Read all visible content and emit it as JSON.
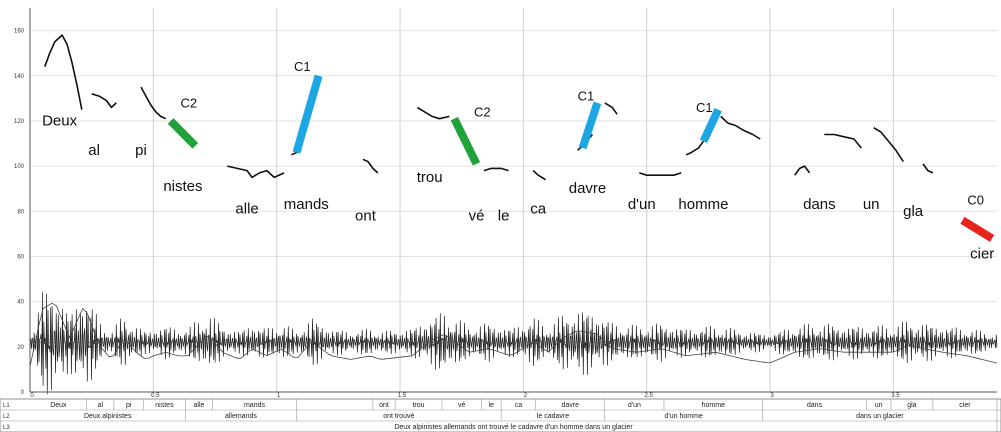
{
  "chart_data": {
    "type": "line",
    "ylim": [
      0,
      170
    ],
    "xlim": [
      0,
      3.92
    ],
    "y_ticks": [
      {
        "value": 0,
        "label": "0"
      },
      {
        "value": 20,
        "label": "20"
      },
      {
        "value": 40,
        "label": "40"
      },
      {
        "value": 60,
        "label": "60"
      },
      {
        "value": 80,
        "label": "80"
      },
      {
        "value": 100,
        "label": "100"
      },
      {
        "value": 120,
        "label": "120"
      },
      {
        "value": 140,
        "label": "140"
      },
      {
        "value": 160,
        "label": "160"
      }
    ],
    "x_ticks": [
      {
        "value": 0,
        "label": "0"
      },
      {
        "value": 0.5,
        "label": "0.5"
      },
      {
        "value": 1,
        "label": "1"
      },
      {
        "value": 1.5,
        "label": "1.5"
      },
      {
        "value": 2,
        "label": "2"
      },
      {
        "value": 2.5,
        "label": "2.5"
      },
      {
        "value": 3,
        "label": "3"
      },
      {
        "value": 3.5,
        "label": "3.5"
      }
    ],
    "pitch_series": [
      [
        [
          0.06,
          144
        ],
        [
          0.08,
          150
        ],
        [
          0.1,
          155
        ],
        [
          0.13,
          158
        ],
        [
          0.15,
          154
        ],
        [
          0.17,
          146
        ],
        [
          0.19,
          136
        ],
        [
          0.21,
          125
        ]
      ],
      [
        [
          0.25,
          132
        ],
        [
          0.28,
          131
        ],
        [
          0.31,
          129
        ],
        [
          0.33,
          126
        ],
        [
          0.35,
          128
        ]
      ],
      [
        [
          0.45,
          135
        ],
        [
          0.47,
          131
        ],
        [
          0.49,
          127
        ],
        [
          0.51,
          124
        ],
        [
          0.53,
          122
        ],
        [
          0.55,
          121
        ]
      ],
      [
        [
          0.8,
          100
        ],
        [
          0.84,
          99
        ],
        [
          0.88,
          98
        ],
        [
          0.9,
          95
        ],
        [
          0.93,
          97
        ],
        [
          0.96,
          98
        ],
        [
          0.99,
          95
        ],
        [
          1.03,
          97
        ]
      ],
      [
        [
          1.06,
          105
        ],
        [
          1.08,
          106
        ],
        [
          1.1,
          107
        ]
      ],
      [
        [
          1.35,
          103
        ],
        [
          1.37,
          102
        ],
        [
          1.39,
          99
        ],
        [
          1.41,
          97
        ]
      ],
      [
        [
          1.57,
          126
        ],
        [
          1.6,
          124
        ],
        [
          1.63,
          122
        ],
        [
          1.66,
          121
        ],
        [
          1.7,
          122
        ]
      ],
      [
        [
          1.84,
          98
        ],
        [
          1.87,
          99
        ],
        [
          1.91,
          99
        ],
        [
          1.94,
          98
        ]
      ],
      [
        [
          2.04,
          98
        ],
        [
          2.06,
          96
        ],
        [
          2.09,
          94
        ]
      ],
      [
        [
          2.22,
          107
        ],
        [
          2.25,
          110
        ],
        [
          2.28,
          114
        ]
      ],
      [
        [
          2.33,
          128
        ],
        [
          2.36,
          126
        ],
        [
          2.38,
          123
        ]
      ],
      [
        [
          2.47,
          97
        ],
        [
          2.5,
          96
        ],
        [
          2.55,
          96
        ],
        [
          2.61,
          96
        ],
        [
          2.64,
          97
        ]
      ],
      [
        [
          2.66,
          105
        ],
        [
          2.68,
          106
        ],
        [
          2.71,
          108
        ],
        [
          2.73,
          111
        ]
      ],
      [
        [
          2.8,
          122
        ],
        [
          2.83,
          119
        ],
        [
          2.86,
          118
        ],
        [
          2.89,
          116
        ],
        [
          2.93,
          114
        ],
        [
          2.96,
          112
        ]
      ],
      [
        [
          3.1,
          96
        ],
        [
          3.12,
          99
        ],
        [
          3.14,
          100
        ],
        [
          3.16,
          97
        ]
      ],
      [
        [
          3.22,
          114
        ],
        [
          3.26,
          114
        ],
        [
          3.3,
          113
        ],
        [
          3.34,
          112
        ],
        [
          3.37,
          108
        ]
      ],
      [
        [
          3.42,
          117
        ],
        [
          3.45,
          115
        ],
        [
          3.48,
          111
        ],
        [
          3.51,
          107
        ],
        [
          3.54,
          102
        ]
      ],
      [
        [
          3.62,
          101
        ],
        [
          3.64,
          98
        ],
        [
          3.66,
          97
        ]
      ]
    ],
    "syllables": [
      {
        "text": "Deux",
        "x": 0.12,
        "y": 118
      },
      {
        "text": "al",
        "x": 0.26,
        "y": 105
      },
      {
        "text": "pi",
        "x": 0.45,
        "y": 105
      },
      {
        "text": "nistes",
        "x": 0.62,
        "y": 89
      },
      {
        "text": "alle",
        "x": 0.88,
        "y": 79
      },
      {
        "text": "mands",
        "x": 1.12,
        "y": 81
      },
      {
        "text": "ont",
        "x": 1.36,
        "y": 76
      },
      {
        "text": "trou",
        "x": 1.62,
        "y": 93
      },
      {
        "text": "vé",
        "x": 1.81,
        "y": 76
      },
      {
        "text": "le",
        "x": 1.92,
        "y": 76
      },
      {
        "text": "ca",
        "x": 2.06,
        "y": 79
      },
      {
        "text": "davre",
        "x": 2.26,
        "y": 88
      },
      {
        "text": "d'un",
        "x": 2.48,
        "y": 81
      },
      {
        "text": "homme",
        "x": 2.73,
        "y": 81
      },
      {
        "text": "dans",
        "x": 3.2,
        "y": 81
      },
      {
        "text": "un",
        "x": 3.41,
        "y": 81
      },
      {
        "text": "gla",
        "x": 3.58,
        "y": 78
      },
      {
        "text": "cier",
        "x": 3.86,
        "y": 59
      }
    ],
    "contours": [
      {
        "label": "C2",
        "color": "#1fa23a",
        "x0": 0.57,
        "y0": 120,
        "x1": 0.67,
        "y1": 109,
        "lx": 0.61,
        "ly": 126
      },
      {
        "label": "C1",
        "color": "#1ca6e4",
        "x0": 1.08,
        "y0": 106,
        "x1": 1.17,
        "y1": 140,
        "lx": 1.07,
        "ly": 142
      },
      {
        "label": "C2",
        "color": "#1fa23a",
        "x0": 1.72,
        "y0": 121,
        "x1": 1.81,
        "y1": 101,
        "lx": 1.8,
        "ly": 122
      },
      {
        "label": "C1",
        "color": "#1ca6e4",
        "x0": 2.24,
        "y0": 108,
        "x1": 2.3,
        "y1": 128,
        "lx": 2.22,
        "ly": 129
      },
      {
        "label": "C1",
        "color": "#1ca6e4",
        "x0": 2.73,
        "y0": 111,
        "x1": 2.79,
        "y1": 125,
        "lx": 2.7,
        "ly": 124
      },
      {
        "label": "C0",
        "color": "#e8231e",
        "x0": 3.78,
        "y0": 76,
        "x1": 3.9,
        "y1": 68,
        "lx": 3.8,
        "ly": 83
      }
    ]
  },
  "tiers": [
    {
      "label": "L1",
      "cells": [
        {
          "text": "Deux",
          "t0": 0.0,
          "t1": 0.23
        },
        {
          "text": "al",
          "t0": 0.23,
          "t1": 0.34
        },
        {
          "text": "pi",
          "t0": 0.34,
          "t1": 0.46
        },
        {
          "text": "nistes",
          "t0": 0.46,
          "t1": 0.63
        },
        {
          "text": "alle",
          "t0": 0.63,
          "t1": 0.74
        },
        {
          "text": "mands",
          "t0": 0.74,
          "t1": 1.08
        },
        {
          "text": "",
          "t0": 1.08,
          "t1": 1.39
        },
        {
          "text": "ont",
          "t0": 1.39,
          "t1": 1.48
        },
        {
          "text": "trou",
          "t0": 1.48,
          "t1": 1.67
        },
        {
          "text": "vé",
          "t0": 1.67,
          "t1": 1.83
        },
        {
          "text": "le",
          "t0": 1.83,
          "t1": 1.91
        },
        {
          "text": "ca",
          "t0": 1.91,
          "t1": 2.05
        },
        {
          "text": "davre",
          "t0": 2.05,
          "t1": 2.33
        },
        {
          "text": "d'un",
          "t0": 2.33,
          "t1": 2.57
        },
        {
          "text": "homme",
          "t0": 2.57,
          "t1": 2.97
        },
        {
          "text": "dans",
          "t0": 2.97,
          "t1": 3.39
        },
        {
          "text": "un",
          "t0": 3.39,
          "t1": 3.49
        },
        {
          "text": "gla",
          "t0": 3.49,
          "t1": 3.66
        },
        {
          "text": "cier",
          "t0": 3.66,
          "t1": 3.92
        }
      ]
    },
    {
      "label": "L2",
      "cells": [
        {
          "text": "Deux alpinistes",
          "t0": 0.0,
          "t1": 0.63
        },
        {
          "text": "allemands",
          "t0": 0.63,
          "t1": 1.08
        },
        {
          "text": "ont trouvé",
          "t0": 1.08,
          "t1": 1.91
        },
        {
          "text": "le cadavre",
          "t0": 1.91,
          "t1": 2.33
        },
        {
          "text": "d'un homme",
          "t0": 2.33,
          "t1": 2.97
        },
        {
          "text": "dans un glacier",
          "t0": 2.97,
          "t1": 3.92
        }
      ]
    },
    {
      "label": "L3",
      "cells": [
        {
          "text": "Deux alpinistes allemands ont trouvé le cadavre d'un homme dans un glacier",
          "t0": 0.0,
          "t1": 3.92
        }
      ]
    }
  ]
}
